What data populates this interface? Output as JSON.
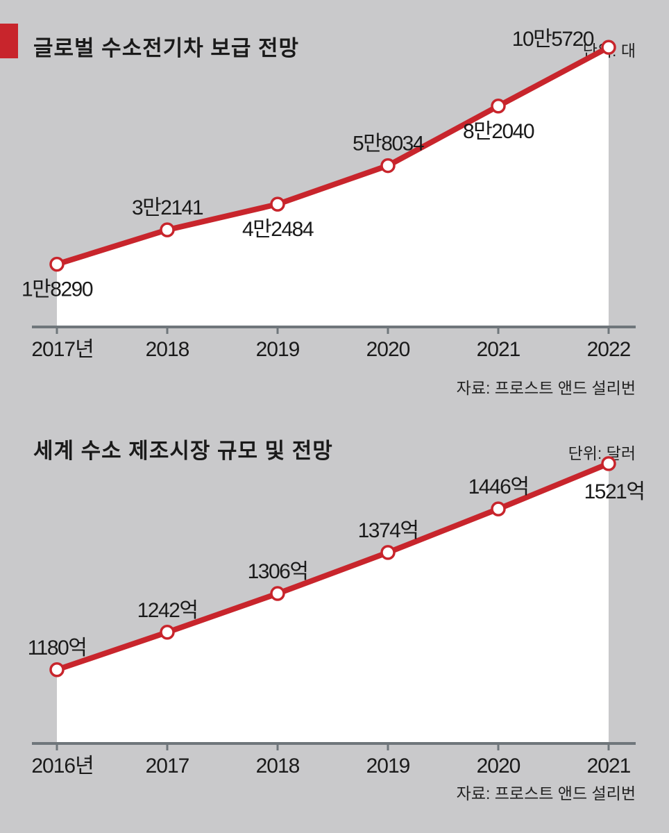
{
  "accent_color": "#c8252c",
  "line_color": "#c8252c",
  "axis_color": "#6f767b",
  "chart_data": [
    {
      "type": "area",
      "title": "글로벌 수소전기차 보급 전망",
      "unit_label": "단위: 대",
      "source": "자료: 프로스트 앤드 설리번",
      "categories": [
        "2017년",
        "2018",
        "2019",
        "2020",
        "2021",
        "2022"
      ],
      "values": [
        18290,
        32141,
        42484,
        58034,
        82040,
        105720
      ],
      "data_labels": [
        "1만8290",
        "3만2141",
        "4만2484",
        "5만8034",
        "8만2040",
        "10만5720"
      ],
      "label_positions": [
        "below",
        "above",
        "below",
        "above",
        "below",
        "above-left"
      ],
      "ylim": [
        -7000,
        108000
      ],
      "grid": false,
      "legend": "none"
    },
    {
      "type": "area",
      "title": "세계 수소 제조시장 규모 및 전망",
      "unit_label": "단위: 달러",
      "source": "자료: 프로스트 앤드 설리번",
      "categories": [
        "2016년",
        "2017",
        "2018",
        "2019",
        "2020",
        "2021"
      ],
      "values": [
        1180,
        1242,
        1306,
        1374,
        1446,
        1521
      ],
      "data_labels": [
        "1180억",
        "1242억",
        "1306억",
        "1374억",
        "1446억",
        "1521억"
      ],
      "label_positions": [
        "above",
        "above",
        "above",
        "above",
        "above",
        "below"
      ],
      "ylim": [
        1058,
        1530
      ],
      "grid": false,
      "legend": "none"
    }
  ]
}
